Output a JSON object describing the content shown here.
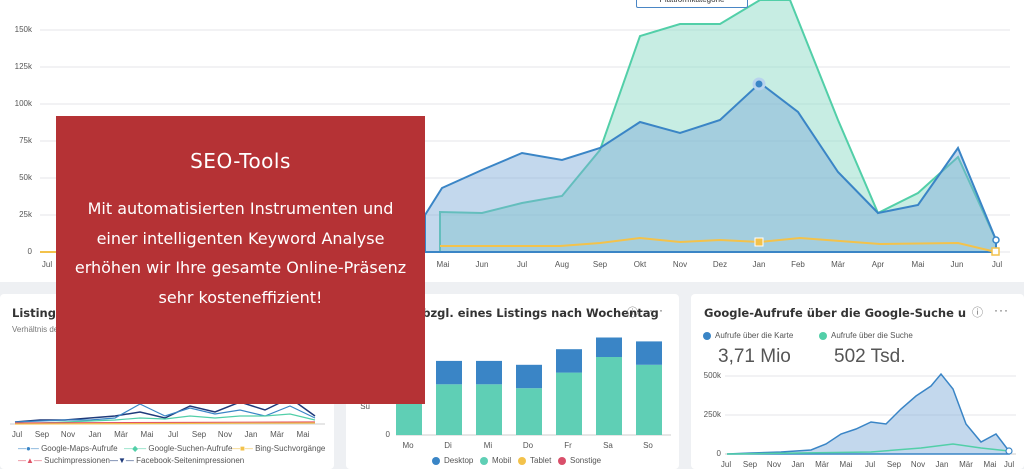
{
  "main_chart": {
    "y_ticks": [
      "150k",
      "125k",
      "100k",
      "75k",
      "50k",
      "25k",
      "0"
    ],
    "x_ticks": [
      "Jul",
      "Mai",
      "Jun",
      "Jul",
      "Aug",
      "Sep",
      "Okt",
      "Nov",
      "Dez",
      "Jan",
      "Feb",
      "Mär",
      "Apr",
      "Mai",
      "Jun",
      "Jul"
    ],
    "tooltip": "Plattformkategorie"
  },
  "banner": {
    "title": "SEO-Tools",
    "text": "Mit automatisierten Instrumenten und einer intelligenten Keyword Analyse erhöhen wir Ihre gesamte Online-Präsenz sehr kosteneffizient!"
  },
  "card1": {
    "title": "Listings-I",
    "subtitle": "Verhältnis de",
    "x_ticks": [
      "Jul",
      "Sep",
      "Nov",
      "Jan",
      "Mär",
      "Mai",
      "Jul",
      "Sep",
      "Nov",
      "Jan",
      "Mär",
      "Mai"
    ],
    "legend": [
      "Google-Maps-Aufrufe",
      "Google-Suchen-Aufrufe",
      "Bing-Suchvorgänge",
      "Suchimpressionen",
      "Facebook-Seitenimpressionen"
    ]
  },
  "card2": {
    "title": "g bzgl. eines Listings nach Wochentag",
    "y_label": "Su",
    "zero_tick": "0",
    "legend": [
      "Desktop",
      "Mobil",
      "Tablet",
      "Sonstige"
    ]
  },
  "card3": {
    "title": "Google-Aufrufe über die Google-Suche und Google",
    "legend": [
      "Aufrufe über die Karte",
      "Aufrufe über die Suche"
    ],
    "value1": "3,71 Mio",
    "value2": "502 Tsd.",
    "y_ticks": [
      "500k",
      "250k",
      "0"
    ],
    "x_ticks": [
      "Jul",
      "Sep",
      "Nov",
      "Jan",
      "Mär",
      "Mai",
      "Jul",
      "Sep",
      "Nov",
      "Jan",
      "Mär",
      "Mai",
      "Jul"
    ]
  },
  "chart_data": {
    "type": "bar",
    "categories": [
      "Mo",
      "Di",
      "Mi",
      "Do",
      "Fr",
      "Sa",
      "So"
    ],
    "series": [
      {
        "name": "Desktop",
        "values": [
          8,
          6,
          6,
          6,
          6,
          5,
          6
        ]
      },
      {
        "name": "Mobil",
        "values": [
          10,
          13,
          13,
          12,
          16,
          20,
          18
        ]
      },
      {
        "name": "Tablet",
        "values": [
          0,
          0,
          0,
          0,
          0,
          0,
          0
        ]
      },
      {
        "name": "Sonstige",
        "values": [
          0,
          0,
          0,
          0,
          0,
          0,
          0
        ]
      }
    ],
    "colors": {
      "Desktop": "#3a85c6",
      "Mobil": "#5fcfb5",
      "Tablet": "#f3c24b",
      "Sonstige": "#d94f6a"
    }
  },
  "icons": {
    "info": "ⓘ",
    "more": "···"
  }
}
